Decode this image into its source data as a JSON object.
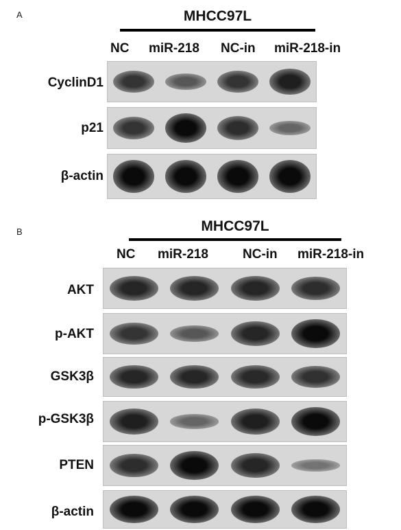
{
  "panels": [
    {
      "letter": "A",
      "cell_line": "MHCC97L",
      "lanes": [
        "NC",
        "miR-218",
        "NC-in",
        "miR-218-in"
      ],
      "rows": [
        {
          "label": "CyclinD1",
          "intensity": [
            0.7,
            0.45,
            0.7,
            0.85
          ]
        },
        {
          "label": "p21",
          "intensity": [
            0.7,
            1.0,
            0.75,
            0.35
          ]
        },
        {
          "label": "β-actin",
          "intensity": [
            1.0,
            1.0,
            1.0,
            1.0
          ]
        }
      ]
    },
    {
      "letter": "B",
      "cell_line": "MHCC97L",
      "lanes": [
        "NC",
        "miR-218",
        "NC-in",
        "miR-218-in"
      ],
      "rows": [
        {
          "label": "AKT",
          "intensity": [
            0.8,
            0.8,
            0.8,
            0.75
          ]
        },
        {
          "label": "p-AKT",
          "intensity": [
            0.7,
            0.45,
            0.8,
            1.0
          ]
        },
        {
          "label": "GSK3β",
          "intensity": [
            0.8,
            0.8,
            0.78,
            0.72
          ]
        },
        {
          "label": "p-GSK3β",
          "intensity": [
            0.85,
            0.35,
            0.85,
            1.0
          ]
        },
        {
          "label": "PTEN",
          "intensity": [
            0.75,
            1.0,
            0.8,
            0.25
          ]
        },
        {
          "label": "β-actin",
          "intensity": [
            1.0,
            1.0,
            1.0,
            1.0
          ]
        }
      ]
    }
  ]
}
